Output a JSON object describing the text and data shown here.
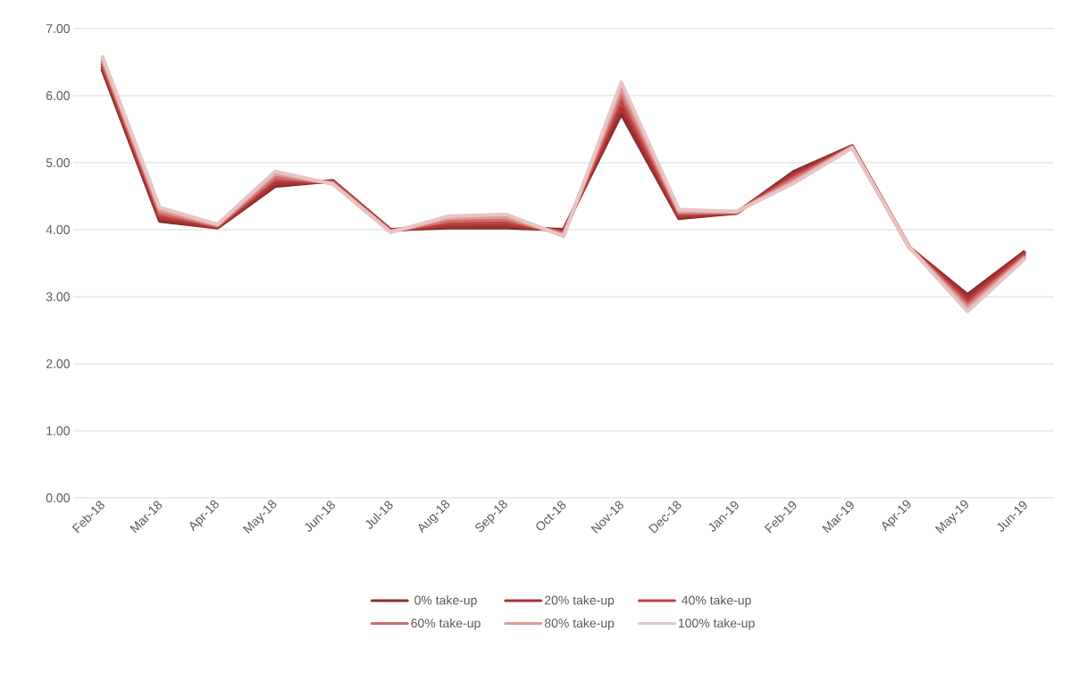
{
  "chart_data": {
    "type": "line",
    "categories": [
      "Feb-18",
      "Mar-18",
      "Apr-18",
      "May-18",
      "Jun-18",
      "Jul-18",
      "Aug-18",
      "Sep-18",
      "Oct-18",
      "Nov-18",
      "Dec-18",
      "Jan-19",
      "Feb-19",
      "Mar-19",
      "Apr-19",
      "May-19",
      "Jun-19"
    ],
    "ylim": [
      0,
      7
    ],
    "yticks": [
      {
        "value": 0,
        "label": "0.00"
      },
      {
        "value": 1,
        "label": "1.00"
      },
      {
        "value": 2,
        "label": "2.00"
      },
      {
        "value": 3,
        "label": "3.00"
      },
      {
        "value": 4,
        "label": "4.00"
      },
      {
        "value": 5,
        "label": "5.00"
      },
      {
        "value": 6,
        "label": "6.00"
      },
      {
        "value": 7,
        "label": "7.00"
      }
    ],
    "grid": "y",
    "legend": "bottom",
    "marker": "none",
    "line_style": "solid",
    "series": [
      {
        "name": "0% take-up",
        "color": "#8b2e2e",
        "values": [
          6.4,
          4.13,
          4.03,
          4.65,
          4.73,
          4.0,
          4.03,
          4.03,
          4.0,
          5.73,
          4.17,
          4.25,
          4.87,
          5.25,
          3.73,
          3.03,
          3.68
        ]
      },
      {
        "name": "20% take-up",
        "color": "#a83434",
        "values": [
          6.44,
          4.17,
          4.04,
          4.69,
          4.72,
          3.99,
          4.06,
          4.07,
          3.98,
          5.82,
          4.2,
          4.25,
          4.84,
          5.24,
          3.73,
          2.98,
          3.66
        ]
      },
      {
        "name": "40% take-up",
        "color": "#c0423e",
        "values": [
          6.48,
          4.21,
          4.05,
          4.74,
          4.71,
          3.98,
          4.1,
          4.11,
          3.96,
          5.92,
          4.22,
          4.26,
          4.8,
          5.24,
          3.73,
          2.93,
          3.64
        ]
      },
      {
        "name": "60% take-up",
        "color": "#cf6e6a",
        "values": [
          6.52,
          4.25,
          4.06,
          4.78,
          4.7,
          3.98,
          4.13,
          4.15,
          3.94,
          6.01,
          4.25,
          4.26,
          4.77,
          5.23,
          3.73,
          2.88,
          3.61
        ]
      },
      {
        "name": "80% take-up",
        "color": "#dc9c9a",
        "values": [
          6.56,
          4.29,
          4.07,
          4.83,
          4.69,
          3.97,
          4.17,
          4.19,
          3.92,
          6.11,
          4.27,
          4.27,
          4.73,
          5.23,
          3.73,
          2.83,
          3.59
        ]
      },
      {
        "name": "100% take-up",
        "color": "#e8c4c4",
        "values": [
          6.6,
          4.33,
          4.08,
          4.87,
          4.68,
          3.96,
          4.2,
          4.23,
          3.9,
          6.2,
          4.3,
          4.27,
          4.7,
          5.22,
          3.73,
          2.78,
          3.57
        ]
      }
    ]
  }
}
